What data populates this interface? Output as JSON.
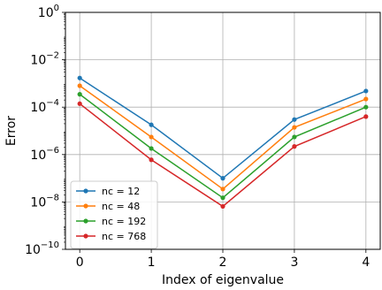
{
  "chart_data": {
    "type": "line",
    "title": "",
    "xlabel": "Index of eigenvalue",
    "ylabel": "Error",
    "x": [
      0,
      1,
      2,
      3,
      4
    ],
    "xticks": [
      "0",
      "1",
      "2",
      "3",
      "4"
    ],
    "yscale": "log",
    "ylim": [
      1e-10,
      1
    ],
    "yticks": [
      {
        "base": "10",
        "exp": "0",
        "value": 1
      },
      {
        "base": "10",
        "exp": "−2",
        "value": 0.01
      },
      {
        "base": "10",
        "exp": "−4",
        "value": 0.0001
      },
      {
        "base": "10",
        "exp": "−6",
        "value": 1e-06
      },
      {
        "base": "10",
        "exp": "−8",
        "value": 1e-08
      },
      {
        "base": "10",
        "exp": "−10",
        "value": 1e-10
      }
    ],
    "grid": true,
    "legend_position": "lower-left",
    "series": [
      {
        "name": "nc = 12",
        "color": "#1f77b4",
        "values": [
          0.0017,
          1.8e-05,
          1e-07,
          3e-05,
          0.00048
        ]
      },
      {
        "name": "nc = 48",
        "color": "#ff7f0e",
        "values": [
          0.0008,
          5.5e-06,
          3.5e-08,
          1.4e-05,
          0.00022
        ]
      },
      {
        "name": "nc = 192",
        "color": "#2ca02c",
        "values": [
          0.00035,
          1.8e-06,
          1.5e-08,
          5.5e-06,
          0.0001
        ]
      },
      {
        "name": "nc = 768",
        "color": "#d62728",
        "values": [
          0.00014,
          6e-07,
          6.5e-09,
          2.2e-06,
          4e-05
        ]
      }
    ]
  }
}
